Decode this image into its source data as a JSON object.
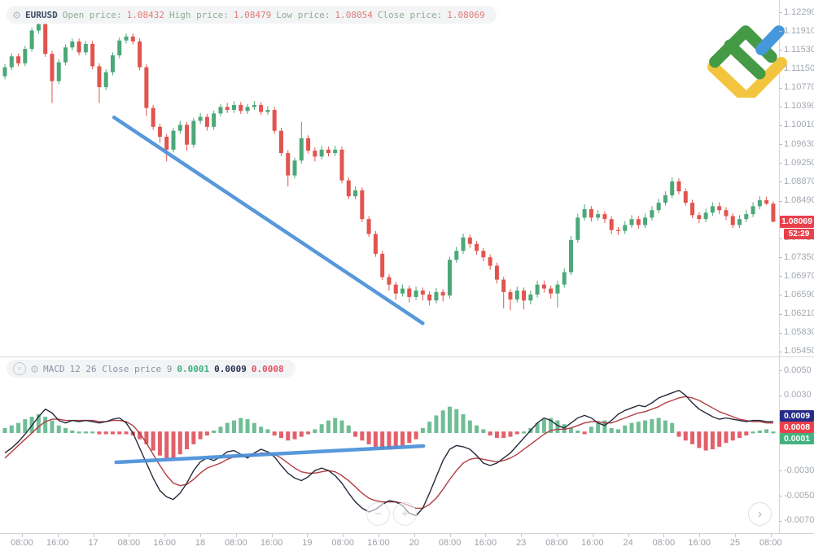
{
  "header": {
    "symbol": "EURUSD",
    "open_label": "Open price:",
    "open_value": "1.08432",
    "high_label": "High price:",
    "high_value": "1.08479",
    "low_label": "Low price:",
    "low_value": "1.08054",
    "close_label": "Close price:",
    "close_value": "1.08069"
  },
  "macd_header": {
    "name": "MACD",
    "params": "12 26 Close price 9",
    "hist_value": "0.0001",
    "macd_value": "0.0009",
    "signal_value": "0.0008"
  },
  "price_axis": {
    "current_price": "1.08069",
    "countdown": "52:29"
  },
  "macd_axis": {
    "badge_macd": "0.0009",
    "badge_signal": "0.0008",
    "badge_hist": "0.0001"
  },
  "controls": {
    "zoom_out": "−",
    "zoom_in": "+",
    "scroll_right": "›"
  },
  "colors": {
    "bull": "#4ca878",
    "bear": "#e2544e",
    "hist_bull": "#6fbe95",
    "hist_bear": "#e2606a",
    "macd_line": "#232a3b",
    "signal_line": "#b23c42",
    "trendline": "#4a90d9",
    "badge_red": "#e8414b",
    "badge_navy": "#252c87",
    "badge_green": "#43b27e",
    "logo_green": "#459a45",
    "logo_yellow": "#f3c53e",
    "logo_blue": "#4598db"
  },
  "chart_data": [
    {
      "type": "candlestick",
      "symbol": "EURUSD",
      "last_candle": {
        "open": 1.08432,
        "high": 1.08479,
        "low": 1.08054,
        "close": 1.08069
      },
      "y_axis_labels": [
        "1.12290",
        "1.11910",
        "1.11530",
        "1.11150",
        "1.10770",
        "1.10390",
        "1.10010",
        "1.09630",
        "1.09250",
        "1.08870",
        "1.08490",
        "1.07730",
        "1.07350",
        "1.06970",
        "1.06590",
        "1.06210",
        "1.05830",
        "1.05450"
      ],
      "x_axis_labels": [
        "08:00",
        "16:00",
        "17",
        "08:00",
        "16:00",
        "18",
        "08:00",
        "16:00",
        "19",
        "08:00",
        "16:00",
        "20",
        "08:00",
        "16:00",
        "23",
        "08:00",
        "16:00",
        "24",
        "08:00",
        "16:00",
        "25",
        "08:00"
      ],
      "trendline": {
        "from_index": 16.2,
        "from_price": 1.1017,
        "to_index": 62.0,
        "to_price": 1.0602
      },
      "candles": [
        [
          1.11,
          1.1124,
          1.1094,
          1.1118
        ],
        [
          1.1118,
          1.1146,
          1.1112,
          1.114
        ],
        [
          1.114,
          1.1146,
          1.112,
          1.1126
        ],
        [
          1.1126,
          1.1161,
          1.112,
          1.1155
        ],
        [
          1.1155,
          1.1198,
          1.1149,
          1.1192
        ],
        [
          1.1192,
          1.1212,
          1.1186,
          1.1205
        ],
        [
          1.1205,
          1.1211,
          1.1139,
          1.1145
        ],
        [
          1.1145,
          1.1151,
          1.1046,
          1.109
        ],
        [
          1.109,
          1.1134,
          1.1084,
          1.1128
        ],
        [
          1.1128,
          1.1164,
          1.1122,
          1.1158
        ],
        [
          1.1158,
          1.1176,
          1.1152,
          1.117
        ],
        [
          1.117,
          1.1176,
          1.1142,
          1.1148
        ],
        [
          1.1148,
          1.1171,
          1.1142,
          1.1165
        ],
        [
          1.1165,
          1.1171,
          1.1114,
          1.112
        ],
        [
          1.112,
          1.1126,
          1.1046,
          1.1078
        ],
        [
          1.1078,
          1.1114,
          1.1072,
          1.1108
        ],
        [
          1.1108,
          1.1148,
          1.1102,
          1.1142
        ],
        [
          1.1142,
          1.1178,
          1.1136,
          1.1172
        ],
        [
          1.1172,
          1.1186,
          1.1166,
          1.118
        ],
        [
          1.118,
          1.1186,
          1.1164,
          1.117
        ],
        [
          1.117,
          1.1176,
          1.1112,
          1.1118
        ],
        [
          1.1118,
          1.1124,
          1.102,
          1.1036
        ],
        [
          1.1036,
          1.1042,
          1.0992,
          1.0998
        ],
        [
          1.0998,
          1.1004,
          1.0966,
          1.0978
        ],
        [
          1.0978,
          1.0984,
          1.0928,
          1.0952
        ],
        [
          1.0952,
          1.0996,
          1.0946,
          1.099
        ],
        [
          1.099,
          1.101,
          1.0984,
          1.1002
        ],
        [
          1.1002,
          1.1008,
          1.095,
          1.0962
        ],
        [
          1.0962,
          1.1016,
          1.0956,
          1.101
        ],
        [
          1.101,
          1.1026,
          1.1004,
          1.1018
        ],
        [
          1.1018,
          1.1024,
          1.099,
          1.0998
        ],
        [
          1.0998,
          1.1031,
          1.0992,
          1.1025
        ],
        [
          1.1025,
          1.1044,
          1.1019,
          1.1038
        ],
        [
          1.1038,
          1.1046,
          1.1026,
          1.1032
        ],
        [
          1.1032,
          1.105,
          1.1026,
          1.1042
        ],
        [
          1.1042,
          1.1048,
          1.1024,
          1.103
        ],
        [
          1.103,
          1.1044,
          1.1024,
          1.1038
        ],
        [
          1.1038,
          1.105,
          1.1032,
          1.1042
        ],
        [
          1.1042,
          1.1048,
          1.1022,
          1.1028
        ],
        [
          1.1028,
          1.104,
          1.1022,
          1.1032
        ],
        [
          1.1032,
          1.1038,
          1.0984,
          1.099
        ],
        [
          1.099,
          1.0996,
          1.0939,
          1.0945
        ],
        [
          1.0945,
          1.0951,
          1.0878,
          1.09
        ],
        [
          1.09,
          1.0936,
          1.0894,
          1.093
        ],
        [
          1.093,
          1.1008,
          1.0924,
          1.0975
        ],
        [
          1.0975,
          1.0981,
          1.0944,
          1.095
        ],
        [
          1.095,
          1.0956,
          1.0928,
          1.0938
        ],
        [
          1.0938,
          1.096,
          1.0932,
          1.0952
        ],
        [
          1.0952,
          1.0958,
          1.0938,
          1.0945
        ],
        [
          1.0945,
          1.096,
          1.0939,
          1.0952
        ],
        [
          1.0952,
          1.0958,
          1.0884,
          1.089
        ],
        [
          1.089,
          1.0896,
          1.0852,
          1.0858
        ],
        [
          1.0858,
          1.0878,
          1.0852,
          1.087
        ],
        [
          1.087,
          1.0876,
          1.0806,
          1.0812
        ],
        [
          1.0812,
          1.0818,
          1.0776,
          1.0782
        ],
        [
          1.0782,
          1.0788,
          1.0736,
          1.0742
        ],
        [
          1.0742,
          1.0748,
          1.0689,
          1.0695
        ],
        [
          1.0695,
          1.0701,
          1.0668,
          1.068
        ],
        [
          1.068,
          1.0686,
          1.065,
          1.0662
        ],
        [
          1.0662,
          1.068,
          1.0656,
          1.0672
        ],
        [
          1.0672,
          1.0678,
          1.0644,
          1.0655
        ],
        [
          1.0655,
          1.0676,
          1.0649,
          1.0668
        ],
        [
          1.0668,
          1.0674,
          1.0648,
          1.066
        ],
        [
          1.066,
          1.0666,
          1.0638,
          1.0648
        ],
        [
          1.0648,
          1.0673,
          1.0642,
          1.0665
        ],
        [
          1.0665,
          1.0671,
          1.0646,
          1.0658
        ],
        [
          1.0658,
          1.0736,
          1.0652,
          1.073
        ],
        [
          1.073,
          1.0756,
          1.0724,
          1.0748
        ],
        [
          1.0748,
          1.0783,
          1.0742,
          1.0775
        ],
        [
          1.0775,
          1.0781,
          1.0754,
          1.0762
        ],
        [
          1.0762,
          1.0768,
          1.074,
          1.0748
        ],
        [
          1.0748,
          1.0754,
          1.0727,
          1.0735
        ],
        [
          1.0735,
          1.0741,
          1.071,
          1.0718
        ],
        [
          1.0718,
          1.0724,
          1.0682,
          1.069
        ],
        [
          1.069,
          1.0696,
          1.0632,
          1.0665
        ],
        [
          1.0665,
          1.0671,
          1.0628,
          1.065
        ],
        [
          1.065,
          1.0676,
          1.0644,
          1.0668
        ],
        [
          1.0668,
          1.0674,
          1.063,
          1.0648
        ],
        [
          1.0648,
          1.0668,
          1.064,
          1.066
        ],
        [
          1.066,
          1.0688,
          1.0654,
          1.068
        ],
        [
          1.068,
          1.0688,
          1.0664,
          1.0672
        ],
        [
          1.0672,
          1.0678,
          1.0652,
          1.0662
        ],
        [
          1.0662,
          1.0688,
          1.0634,
          1.068
        ],
        [
          1.068,
          1.0713,
          1.0674,
          1.0705
        ],
        [
          1.0705,
          1.0778,
          1.0699,
          1.077
        ],
        [
          1.077,
          1.0823,
          1.0764,
          1.0815
        ],
        [
          1.0815,
          1.0842,
          1.0809,
          1.0832
        ],
        [
          1.0832,
          1.0838,
          1.0807,
          1.0815
        ],
        [
          1.0815,
          1.083,
          1.0809,
          1.0822
        ],
        [
          1.0822,
          1.0828,
          1.0804,
          1.0812
        ],
        [
          1.0812,
          1.0818,
          1.0782,
          1.079
        ],
        [
          1.079,
          1.0796,
          1.078,
          1.0788
        ],
        [
          1.0788,
          1.0808,
          1.0782,
          1.08
        ],
        [
          1.08,
          1.082,
          1.0794,
          1.0812
        ],
        [
          1.0812,
          1.0818,
          1.0792,
          1.08
        ],
        [
          1.08,
          1.0823,
          1.0794,
          1.0815
        ],
        [
          1.0815,
          1.0838,
          1.0809,
          1.083
        ],
        [
          1.083,
          1.0853,
          1.0824,
          1.0845
        ],
        [
          1.0845,
          1.0868,
          1.0839,
          1.086
        ],
        [
          1.086,
          1.0896,
          1.0854,
          1.0888
        ],
        [
          1.0888,
          1.0894,
          1.0862,
          1.0868
        ],
        [
          1.0868,
          1.0874,
          1.0839,
          1.0845
        ],
        [
          1.0845,
          1.0851,
          1.0814,
          1.082
        ],
        [
          1.082,
          1.0826,
          1.0804,
          1.0812
        ],
        [
          1.0812,
          1.0833,
          1.0806,
          1.0825
        ],
        [
          1.0825,
          1.0846,
          1.0819,
          1.0838
        ],
        [
          1.0838,
          1.0846,
          1.0822,
          1.083
        ],
        [
          1.083,
          1.0836,
          1.081,
          1.0818
        ],
        [
          1.0818,
          1.0824,
          1.0794,
          1.08
        ],
        [
          1.08,
          1.082,
          1.0794,
          1.0812
        ],
        [
          1.0812,
          1.083,
          1.0806,
          1.0822
        ],
        [
          1.0822,
          1.0846,
          1.0816,
          1.0838
        ],
        [
          1.0838,
          1.0858,
          1.0832,
          1.085
        ],
        [
          1.085,
          1.0857,
          1.084,
          1.08432
        ],
        [
          1.08432,
          1.08479,
          1.08054,
          1.08069
        ]
      ]
    },
    {
      "type": "macd",
      "params": {
        "fast": 12,
        "slow": 26,
        "source": "Close price",
        "signal": 9
      },
      "y_axis_labels": [
        "0.0050",
        "0.0030",
        "-0.0030",
        "-0.0050",
        "-0.0070"
      ],
      "current": {
        "histogram": "0.0001",
        "macd": "0.0009",
        "signal": "0.0008"
      },
      "trendline": {
        "from_index": 16.5,
        "from_value": -0.00234,
        "to_index": 62.1,
        "to_value": -0.00104
      },
      "histogram": [
        0.0004,
        0.0006,
        0.0008,
        0.0011,
        0.0013,
        0.0015,
        0.0013,
        0.001,
        0.0006,
        0.0004,
        0.0002,
        0.0001,
        0.0001,
        0.0001,
        -0.0001,
        -0.0001,
        -0.0001,
        -0.0001,
        -0.0001,
        -0.0002,
        -0.0005,
        -0.0009,
        -0.0014,
        -0.0018,
        -0.002,
        -0.002,
        -0.0017,
        -0.0013,
        -0.0009,
        -0.0005,
        -0.0002,
        0.0002,
        0.0005,
        0.0008,
        0.001,
        0.0012,
        0.0011,
        0.0008,
        0.0005,
        0.0003,
        -0.0002,
        -0.0004,
        -0.0006,
        -0.0005,
        -0.0003,
        -0.0001,
        0.0003,
        0.0007,
        0.001,
        0.0012,
        0.001,
        0.0006,
        -0.0003,
        -0.0006,
        -0.0009,
        -0.0011,
        -0.0013,
        -0.0013,
        -0.0012,
        -0.001,
        -0.0008,
        -0.0005,
        0.0004,
        0.0009,
        0.0014,
        0.0018,
        0.0021,
        0.0019,
        0.0015,
        0.001,
        0.0006,
        0.0003,
        -0.0002,
        -0.0004,
        -0.0004,
        -0.0003,
        -0.0001,
        0.0001,
        0.0004,
        0.0008,
        0.0011,
        0.0012,
        0.001,
        0.0007,
        0.0004,
        0.0002,
        -0.0001,
        0.0005,
        0.0008,
        0.001,
        0.0004,
        0.0003,
        0.0006,
        0.0008,
        0.0009,
        0.001,
        0.0011,
        0.0012,
        0.001,
        0.0008,
        -0.0003,
        -0.0006,
        -0.0009,
        -0.0012,
        -0.0014,
        -0.0013,
        -0.0011,
        -0.0008,
        -0.0006,
        -0.0004,
        -0.0002,
        0.0001,
        0.0002,
        0.0003,
        0.0001
      ],
      "macd_line": [
        -0.0016,
        -0.0012,
        -0.0007,
        -0.0001,
        0.0006,
        0.0013,
        0.0019,
        0.0016,
        0.001,
        0.0008,
        0.001,
        0.0009,
        0.001,
        0.0009,
        0.0008,
        0.0009,
        0.0011,
        0.0012,
        0.0008,
        0.0,
        -0.0012,
        -0.0024,
        -0.0036,
        -0.0046,
        -0.0051,
        -0.0053,
        -0.0048,
        -0.004,
        -0.003,
        -0.0023,
        -0.002,
        -0.0022,
        -0.0019,
        -0.0015,
        -0.0014,
        -0.0017,
        -0.002,
        -0.0016,
        -0.0013,
        -0.0015,
        -0.0019,
        -0.0026,
        -0.0032,
        -0.0036,
        -0.0038,
        -0.0035,
        -0.003,
        -0.0028,
        -0.003,
        -0.0034,
        -0.004,
        -0.0048,
        -0.0055,
        -0.006,
        -0.0063,
        -0.0061,
        -0.0057,
        -0.0054,
        -0.0055,
        -0.0058,
        -0.0064,
        -0.0066,
        -0.006,
        -0.0048,
        -0.0035,
        -0.0022,
        -0.0013,
        -0.001,
        -0.0011,
        -0.0013,
        -0.0018,
        -0.0024,
        -0.0026,
        -0.0024,
        -0.002,
        -0.0016,
        -0.001,
        -0.0004,
        0.0002,
        0.0008,
        0.0012,
        0.001,
        0.0006,
        0.0004,
        0.0008,
        0.0012,
        0.0014,
        0.0012,
        0.0008,
        0.0006,
        0.001,
        0.0015,
        0.0018,
        0.002,
        0.0022,
        0.0021,
        0.0024,
        0.0028,
        0.003,
        0.0032,
        0.0034,
        0.003,
        0.0024,
        0.0019,
        0.0016,
        0.0013,
        0.0011,
        0.0012,
        0.0011,
        0.001,
        0.0009,
        0.001,
        0.001,
        0.0009,
        0.0009
      ],
      "signal_line": [
        -0.002,
        -0.0015,
        -0.001,
        -0.0005,
        0.0,
        0.0005,
        0.0009,
        0.0011,
        0.0011,
        0.001,
        0.001,
        0.001,
        0.001,
        0.001,
        0.0009,
        0.0009,
        0.001,
        0.001,
        0.0009,
        0.0006,
        0.0,
        -0.0008,
        -0.0017,
        -0.0026,
        -0.0034,
        -0.004,
        -0.0042,
        -0.0041,
        -0.0037,
        -0.0032,
        -0.0028,
        -0.0026,
        -0.0024,
        -0.0021,
        -0.0019,
        -0.0018,
        -0.0019,
        -0.0018,
        -0.0016,
        -0.0016,
        -0.0017,
        -0.002,
        -0.0024,
        -0.0028,
        -0.0031,
        -0.0032,
        -0.0032,
        -0.0031,
        -0.003,
        -0.0031,
        -0.0034,
        -0.0038,
        -0.0043,
        -0.0048,
        -0.0052,
        -0.0054,
        -0.0055,
        -0.0055,
        -0.0055,
        -0.0056,
        -0.0058,
        -0.006,
        -0.006,
        -0.0057,
        -0.0052,
        -0.0045,
        -0.0037,
        -0.003,
        -0.0024,
        -0.0021,
        -0.002,
        -0.0021,
        -0.0022,
        -0.0023,
        -0.0022,
        -0.002,
        -0.0017,
        -0.0013,
        -0.0009,
        -0.0005,
        -0.0001,
        0.0002,
        0.0003,
        0.0003,
        0.0004,
        0.0006,
        0.0008,
        0.0009,
        0.0009,
        0.0008,
        0.0008,
        0.001,
        0.0012,
        0.0014,
        0.0016,
        0.0017,
        0.0019,
        0.0021,
        0.0024,
        0.0026,
        0.0028,
        0.0029,
        0.0028,
        0.0026,
        0.0023,
        0.002,
        0.0017,
        0.0015,
        0.0013,
        0.0011,
        0.001,
        0.0009,
        0.0009,
        0.0008,
        0.0008
      ]
    }
  ]
}
